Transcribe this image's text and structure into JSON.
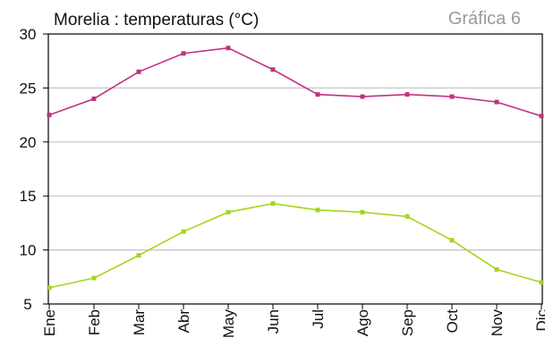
{
  "chart_data": {
    "type": "line",
    "title": "Morelia : temperaturas (°C)",
    "badge": "Gráfica 6",
    "categories": [
      "Ene",
      "Feb",
      "Mar",
      "Abr",
      "May",
      "Jun",
      "Jul",
      "Ago",
      "Sep",
      "Oct",
      "Nov",
      "Dic"
    ],
    "ylim": [
      5,
      30
    ],
    "yticks": [
      5,
      10,
      15,
      20,
      25,
      30
    ],
    "grid": true,
    "series": [
      {
        "color": "#c2317e",
        "values": [
          22.5,
          24.0,
          26.5,
          28.2,
          28.7,
          26.7,
          24.4,
          24.2,
          24.4,
          24.2,
          23.7,
          22.4
        ]
      },
      {
        "color": "#a4d61e",
        "values": [
          6.5,
          7.4,
          9.5,
          11.7,
          13.5,
          14.3,
          13.7,
          13.5,
          13.1,
          10.9,
          8.2,
          7.0
        ]
      }
    ]
  }
}
